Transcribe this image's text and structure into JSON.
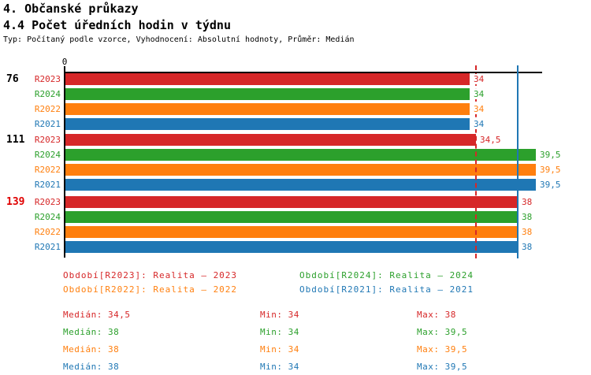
{
  "header": {
    "title_line1": "4. Občanské průkazy",
    "title_line2": "4.4 Počet úředních hodin v týdnu",
    "subtitle": "Typ: Počítaný podle vzorce, Vyhodnocení: Absolutní hodnoty, Průměr: Medián"
  },
  "chart_data": {
    "type": "bar",
    "orientation": "horizontal",
    "title": "4.4 Počet úředních hodin v týdnu",
    "categories": [
      "76",
      "111",
      "139"
    ],
    "category_label_colors": [
      "#000000",
      "#000000",
      "#e00000"
    ],
    "series": [
      {
        "name": "R2023",
        "color": "#d62728",
        "values": [
          34,
          34.5,
          38
        ],
        "value_labels": [
          "34",
          "34,5",
          "38"
        ]
      },
      {
        "name": "R2024",
        "color": "#2ca02c",
        "values": [
          34,
          39.5,
          38
        ],
        "value_labels": [
          "34",
          "39,5",
          "38"
        ]
      },
      {
        "name": "R2022",
        "color": "#ff7f0e",
        "values": [
          34,
          39.5,
          38
        ],
        "value_labels": [
          "34",
          "39,5",
          "38"
        ]
      },
      {
        "name": "R2021",
        "color": "#1f77b4",
        "values": [
          34,
          39.5,
          38
        ],
        "value_labels": [
          "34",
          "39,5",
          "38"
        ]
      }
    ],
    "axis": {
      "origin_tick_label": "0",
      "x_min": 0,
      "x_max": 40
    },
    "reference_lines": [
      {
        "value": 34.5,
        "color": "#d62728",
        "style": "dashed"
      },
      {
        "value": 38,
        "color": "#1f77b4",
        "style": "solid"
      }
    ],
    "grid": false,
    "legend_position": "bottom"
  },
  "legend": {
    "columns": [
      [
        {
          "text": "Období[R2023]: Realita – 2023",
          "color": "#d62728"
        },
        {
          "text": "Období[R2022]: Realita – 2022",
          "color": "#ff7f0e"
        }
      ],
      [
        {
          "text": "Období[R2024]: Realita – 2024",
          "color": "#2ca02c"
        },
        {
          "text": "Období[R2021]: Realita – 2021",
          "color": "#1f77b4"
        }
      ]
    ]
  },
  "stats": {
    "rows": [
      {
        "series": "R2023",
        "color": "#d62728",
        "median": "Medián: 34,5",
        "min": "Min: 34",
        "max": "Max: 38"
      },
      {
        "series": "R2024",
        "color": "#2ca02c",
        "median": "Medián: 38",
        "min": "Min: 34",
        "max": "Max: 39,5"
      },
      {
        "series": "R2022",
        "color": "#ff7f0e",
        "median": "Medián: 38",
        "min": "Min: 34",
        "max": "Max: 39,5"
      },
      {
        "series": "R2021",
        "color": "#1f77b4",
        "median": "Medián: 38",
        "min": "Min: 34",
        "max": "Max: 39,5"
      }
    ]
  }
}
